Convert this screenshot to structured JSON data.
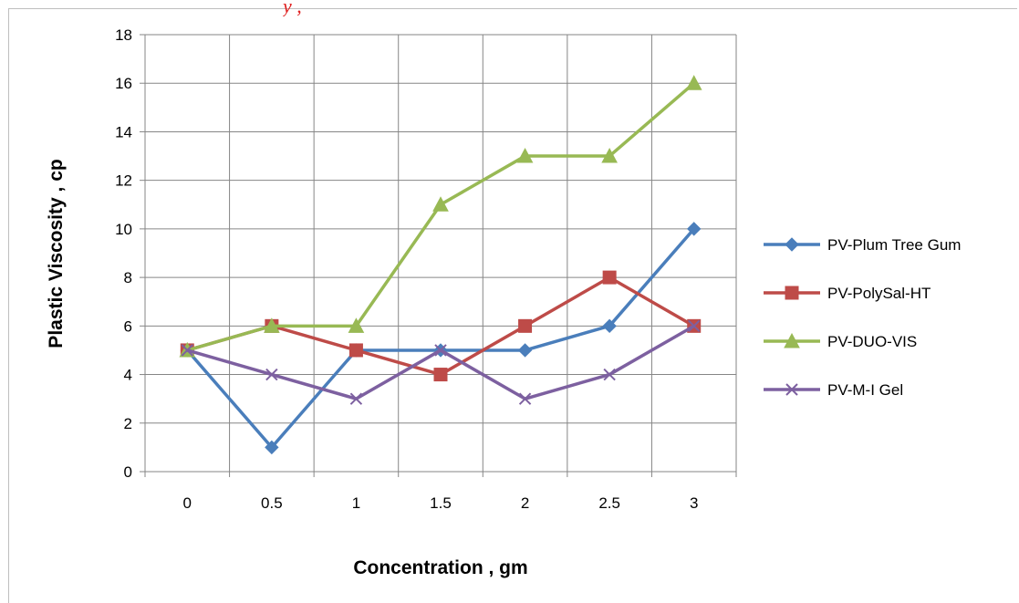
{
  "top_caption": "y         ,",
  "chart_data": {
    "type": "line",
    "title": "",
    "xlabel": "Concentration , gm",
    "ylabel": "Plastic Viscosity , cp",
    "categories": [
      "0",
      "0.5",
      "1",
      "1.5",
      "2",
      "2.5",
      "3"
    ],
    "ylim": [
      0,
      18
    ],
    "yticks": [
      0,
      2,
      4,
      6,
      8,
      10,
      12,
      14,
      16,
      18
    ],
    "grid": true,
    "legend_position": "right",
    "series": [
      {
        "name": "PV-Plum Tree Gum",
        "values": [
          5,
          1,
          5,
          5,
          5,
          6,
          10
        ],
        "color": "#4a7ebb",
        "marker": "diamond"
      },
      {
        "name": "PV-PolySal-HT",
        "values": [
          5,
          6,
          5,
          4,
          6,
          8,
          6
        ],
        "color": "#be4b48",
        "marker": "square"
      },
      {
        "name": "PV-DUO-VIS",
        "values": [
          5,
          6,
          6,
          11,
          13,
          13,
          16
        ],
        "color": "#98b954",
        "marker": "triangle"
      },
      {
        "name": "PV-M-I Gel",
        "values": [
          5,
          4,
          3,
          5,
          3,
          4,
          6
        ],
        "color": "#7d60a0",
        "marker": "x"
      }
    ]
  }
}
